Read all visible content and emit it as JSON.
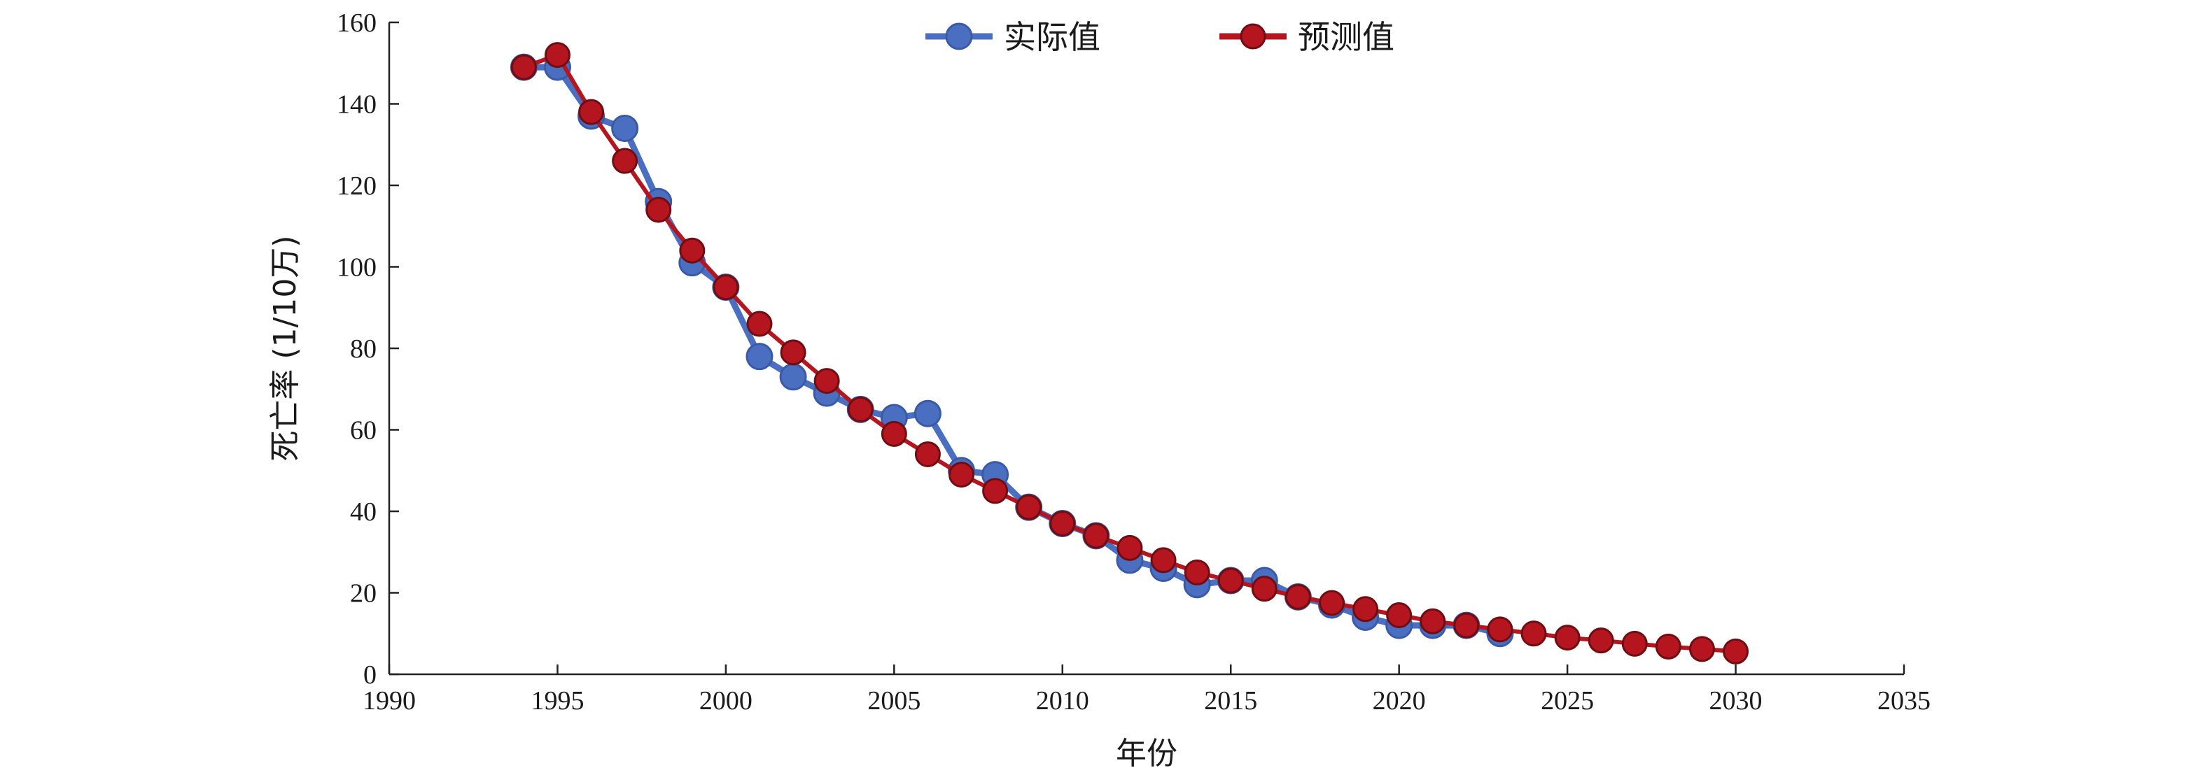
{
  "chart_data": {
    "type": "line",
    "title": "",
    "xlabel": "年份",
    "ylabel": "死亡率 (1/10万)",
    "xlim": [
      1990,
      2035
    ],
    "ylim": [
      0,
      160
    ],
    "xticks": [
      1990,
      1995,
      2000,
      2005,
      2010,
      2015,
      2020,
      2025,
      2030,
      2035
    ],
    "yticks": [
      0,
      20,
      40,
      60,
      80,
      100,
      120,
      140,
      160
    ],
    "grid": false,
    "legend_position": "top-center",
    "series": [
      {
        "name": "实际值",
        "color": "#4a6fc0",
        "x": [
          1994,
          1995,
          1996,
          1997,
          1998,
          1999,
          2000,
          2001,
          2002,
          2003,
          2004,
          2005,
          2006,
          2007,
          2008,
          2009,
          2010,
          2011,
          2012,
          2013,
          2014,
          2015,
          2016,
          2017,
          2018,
          2019,
          2020,
          2021,
          2022,
          2023
        ],
        "y": [
          149,
          149,
          137,
          134,
          116,
          101,
          95,
          78,
          73,
          69,
          65,
          63,
          64,
          50,
          49,
          41,
          37,
          34,
          28,
          26,
          22,
          23,
          23,
          19,
          17,
          14,
          12,
          12,
          12,
          10
        ]
      },
      {
        "name": "预测值",
        "color": "#b5151f",
        "x": [
          1994,
          1995,
          1996,
          1997,
          1998,
          1999,
          2000,
          2001,
          2002,
          2003,
          2004,
          2005,
          2006,
          2007,
          2008,
          2009,
          2010,
          2011,
          2012,
          2013,
          2014,
          2015,
          2016,
          2017,
          2018,
          2019,
          2020,
          2021,
          2022,
          2023,
          2024,
          2025,
          2026,
          2027,
          2028,
          2029,
          2030
        ],
        "y": [
          149,
          152,
          138,
          126,
          114,
          104,
          95,
          86,
          79,
          72,
          65,
          59,
          54,
          49,
          45,
          41,
          37,
          34,
          31,
          28,
          25,
          23,
          21,
          19,
          17.5,
          16,
          14.5,
          13,
          12,
          11,
          10,
          9,
          8.3,
          7.5,
          6.8,
          6.2,
          5.6
        ]
      }
    ]
  }
}
